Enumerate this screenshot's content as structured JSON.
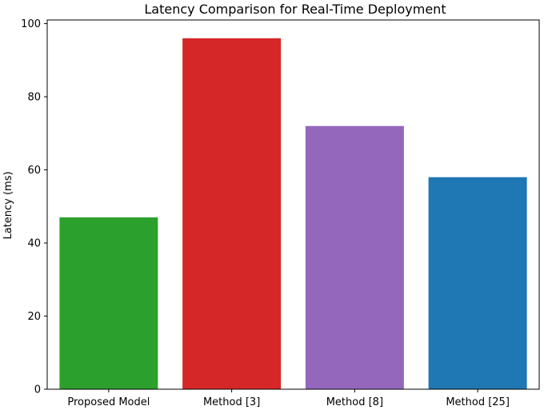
{
  "chart_data": {
    "type": "bar",
    "title": "Latency Comparison for Real-Time Deployment",
    "xlabel": "",
    "ylabel": "Latency (ms)",
    "categories": [
      "Proposed Model",
      "Method [3]",
      "Method [8]",
      "Method [25]"
    ],
    "values": [
      47,
      96,
      72,
      58
    ],
    "colors": [
      "#2ca02c",
      "#d62728",
      "#9467bd",
      "#1f77b4"
    ],
    "ylim": [
      0,
      101
    ],
    "yticks": [
      0,
      20,
      40,
      60,
      80,
      100
    ],
    "grid": false,
    "legend": "none"
  }
}
